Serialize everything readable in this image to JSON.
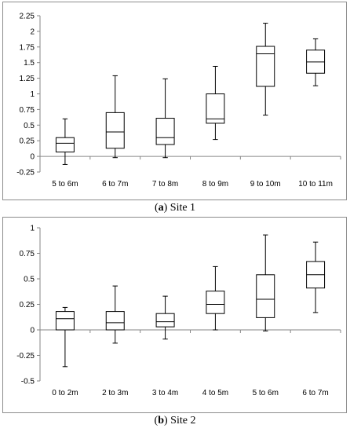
{
  "chart_data": [
    {
      "type": "box",
      "caption_letter": "a",
      "caption_text": "Site 1",
      "categories": [
        "5 to 6m",
        "6 to 7m",
        "7 to 8m",
        "8 to 9m",
        "9 to 10m",
        "10 to 11m"
      ],
      "boxes": [
        {
          "min": -0.13,
          "q1": 0.07,
          "median": 0.21,
          "q3": 0.3,
          "max": 0.6
        },
        {
          "min": -0.02,
          "q1": 0.13,
          "median": 0.39,
          "q3": 0.7,
          "max": 1.29
        },
        {
          "min": -0.02,
          "q1": 0.19,
          "median": 0.3,
          "q3": 0.61,
          "max": 1.24
        },
        {
          "min": 0.27,
          "q1": 0.53,
          "median": 0.6,
          "q3": 1.0,
          "max": 1.44
        },
        {
          "min": 0.66,
          "q1": 1.12,
          "median": 1.64,
          "q3": 1.76,
          "max": 2.13
        },
        {
          "min": 1.13,
          "q1": 1.33,
          "median": 1.51,
          "q3": 1.7,
          "max": 1.88
        }
      ],
      "ylim": [
        -0.25,
        2.25
      ],
      "yticks": [
        -0.25,
        0,
        0.25,
        0.5,
        0.75,
        1,
        1.25,
        1.5,
        1.75,
        2,
        2.25
      ],
      "ytick_labels": [
        "-0.25",
        "0",
        "0.25",
        "0.5",
        "0.75",
        "1",
        "1.25",
        "1.5",
        "1.75",
        "2",
        "2.25"
      ],
      "xlabel": "",
      "ylabel": "",
      "grid": false
    },
    {
      "type": "box",
      "caption_letter": "b",
      "caption_text": "Site 2",
      "categories": [
        "0 to 2m",
        "2 to 3m",
        "3 to 4m",
        "4 to 5m",
        "5 to 6m",
        "6 to 7m"
      ],
      "boxes": [
        {
          "min": -0.36,
          "q1": 0.0,
          "median": 0.11,
          "q3": 0.18,
          "max": 0.22
        },
        {
          "min": -0.13,
          "q1": 0.0,
          "median": 0.07,
          "q3": 0.18,
          "max": 0.43
        },
        {
          "min": -0.09,
          "q1": 0.03,
          "median": 0.08,
          "q3": 0.16,
          "max": 0.33
        },
        {
          "min": 0.0,
          "q1": 0.16,
          "median": 0.25,
          "q3": 0.38,
          "max": 0.62
        },
        {
          "min": -0.01,
          "q1": 0.12,
          "median": 0.3,
          "q3": 0.54,
          "max": 0.93
        },
        {
          "min": 0.17,
          "q1": 0.41,
          "median": 0.54,
          "q3": 0.67,
          "max": 0.86
        }
      ],
      "ylim": [
        -0.5,
        1
      ],
      "yticks": [
        -0.5,
        -0.25,
        0,
        0.25,
        0.5,
        0.75,
        1
      ],
      "ytick_labels": [
        "-0.5",
        "-0.25",
        "0",
        "0.25",
        "0.5",
        "0.75",
        "1"
      ],
      "xlabel": "",
      "ylabel": "",
      "grid": false
    }
  ]
}
